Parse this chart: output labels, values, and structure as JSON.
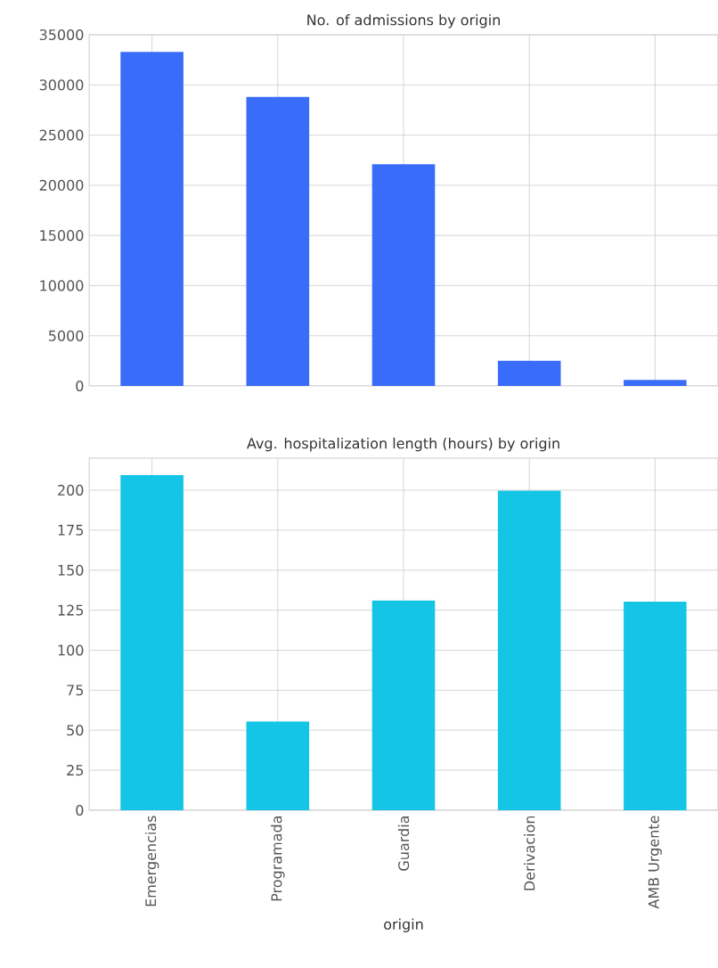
{
  "chart_data": [
    {
      "type": "bar",
      "title": "No. of admissions by origin",
      "categories": [
        null,
        null,
        null,
        null,
        null
      ],
      "values": [
        33300,
        28800,
        22100,
        2500,
        600
      ],
      "color": "#386cf9",
      "ylim": [
        0,
        35000
      ],
      "yticks": [
        0,
        5000,
        10000,
        15000,
        20000,
        25000,
        30000,
        35000
      ],
      "grid": true,
      "tick_labels": "y"
    },
    {
      "type": "bar",
      "title": "Avg. hospitalization length (hours) by origin",
      "xlabel": "origin",
      "categories": [
        "Emergencias",
        "Programada",
        "Guardia",
        "Derivacion",
        "AMB Urgente"
      ],
      "values": [
        209.4,
        55.4,
        131,
        199.7,
        130.3
      ],
      "color": "#14c5e6",
      "ylim": [
        0,
        220
      ],
      "yticks": [
        0,
        25,
        50,
        75,
        100,
        125,
        150,
        175,
        200
      ],
      "grid": true
    }
  ]
}
